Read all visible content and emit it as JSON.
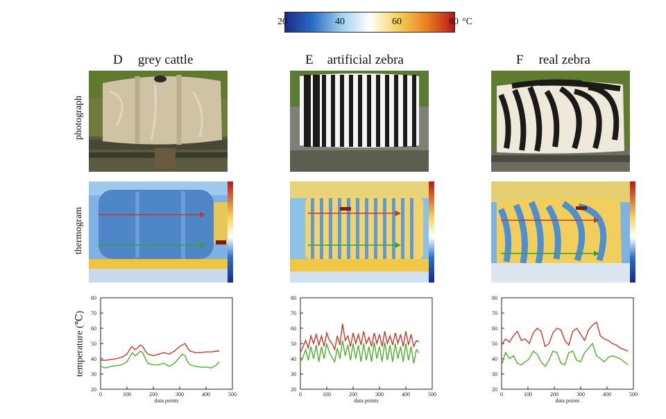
{
  "colorbar": {
    "ticks": [
      "20",
      "40",
      "60",
      "80"
    ],
    "unit": "°C",
    "colors": [
      "#1c2a8a",
      "#2b6fc5",
      "#9fd0ef",
      "#ffffff",
      "#f5d25a",
      "#e8831f",
      "#b81818"
    ]
  },
  "row_labels": {
    "photo": "photograph",
    "thermo": "thermogram",
    "plot_ylabel": "temperature (℃)"
  },
  "panels": [
    {
      "letter": "D",
      "title": "grey cattle"
    },
    {
      "letter": "E",
      "title": "artificial zebra"
    },
    {
      "letter": "F",
      "title": "real zebra"
    }
  ],
  "plot_xlabel": "data points",
  "chart_data": [
    {
      "type": "line",
      "panel": "D",
      "xlabel": "data points",
      "ylabel": "temperature (℃)",
      "xlim": [
        0,
        500
      ],
      "ylim": [
        20,
        80
      ],
      "xticks": [
        "0",
        "100",
        "200",
        "300",
        "400",
        "500"
      ],
      "yticks": [
        "20",
        "30",
        "40",
        "50",
        "60",
        "70",
        "80"
      ],
      "series": [
        {
          "color": "#c0392b",
          "x": [
            0,
            20,
            40,
            60,
            80,
            100,
            110,
            120,
            130,
            140,
            150,
            160,
            170,
            180,
            200,
            220,
            240,
            260,
            280,
            300,
            310,
            320,
            330,
            340,
            360,
            380,
            400,
            420,
            440,
            450
          ],
          "y": [
            39,
            39,
            39.5,
            40,
            41,
            43,
            46,
            48,
            46,
            47,
            49,
            48,
            45,
            43,
            42,
            43,
            44,
            43,
            45,
            48,
            49,
            50,
            47,
            45,
            44,
            44,
            44.5,
            44.5,
            45,
            45
          ]
        },
        {
          "color": "#4caf2a",
          "x": [
            0,
            20,
            40,
            60,
            80,
            100,
            110,
            120,
            130,
            140,
            150,
            160,
            170,
            180,
            200,
            220,
            240,
            260,
            280,
            300,
            310,
            320,
            330,
            340,
            360,
            380,
            400,
            420,
            440,
            450
          ],
          "y": [
            35,
            34,
            35,
            35.5,
            36,
            38,
            41,
            44,
            42,
            43,
            45,
            44,
            40,
            37,
            36,
            36,
            37,
            35,
            37,
            41,
            43,
            42,
            38,
            36,
            35,
            34.5,
            34.5,
            34,
            36,
            38
          ]
        }
      ]
    },
    {
      "type": "line",
      "panel": "E",
      "xlabel": "data points",
      "ylabel": "",
      "xlim": [
        0,
        500
      ],
      "ylim": [
        20,
        80
      ],
      "xticks": [
        "0",
        "100",
        "200",
        "300",
        "400",
        "500"
      ],
      "yticks": [
        "20",
        "30",
        "40",
        "50",
        "60",
        "70",
        "80"
      ],
      "series": [
        {
          "color": "#c0392b",
          "x": [
            0,
            10,
            20,
            30,
            40,
            50,
            60,
            70,
            80,
            90,
            100,
            110,
            120,
            130,
            140,
            150,
            160,
            170,
            180,
            190,
            200,
            210,
            220,
            230,
            240,
            250,
            260,
            270,
            280,
            290,
            300,
            310,
            320,
            330,
            340,
            350,
            360,
            370,
            380,
            390,
            400,
            410,
            420,
            430,
            440,
            450
          ],
          "y": [
            44,
            48,
            52,
            47,
            55,
            50,
            56,
            49,
            55,
            48,
            57,
            52,
            50,
            46,
            55,
            49,
            63,
            52,
            55,
            48,
            57,
            50,
            56,
            49,
            58,
            50,
            54,
            48,
            57,
            50,
            56,
            48,
            58,
            50,
            55,
            49,
            57,
            50,
            56,
            48,
            58,
            49,
            56,
            48,
            52,
            51
          ]
        },
        {
          "color": "#4caf2a",
          "x": [
            0,
            10,
            20,
            30,
            40,
            50,
            60,
            70,
            80,
            90,
            100,
            110,
            120,
            130,
            140,
            150,
            160,
            170,
            180,
            190,
            200,
            210,
            220,
            230,
            240,
            250,
            260,
            270,
            280,
            290,
            300,
            310,
            320,
            330,
            340,
            350,
            360,
            370,
            380,
            390,
            400,
            410,
            420,
            430,
            440,
            450
          ],
          "y": [
            38,
            41,
            46,
            39,
            48,
            40,
            49,
            38,
            48,
            40,
            50,
            44,
            41,
            38,
            47,
            40,
            52,
            42,
            49,
            39,
            50,
            40,
            49,
            38,
            50,
            39,
            48,
            38,
            51,
            40,
            48,
            38,
            51,
            39,
            49,
            38,
            50,
            40,
            48,
            38,
            50,
            39,
            48,
            37,
            46,
            44
          ]
        }
      ]
    },
    {
      "type": "line",
      "panel": "F",
      "xlabel": "data points",
      "ylabel": "",
      "xlim": [
        0,
        500
      ],
      "ylim": [
        20,
        80
      ],
      "xticks": [
        "0",
        "100",
        "200",
        "300",
        "400",
        "500"
      ],
      "yticks": [
        "20",
        "30",
        "40",
        "50",
        "60",
        "70",
        "80"
      ],
      "series": [
        {
          "color": "#c0392b",
          "x": [
            0,
            15,
            30,
            45,
            60,
            75,
            90,
            105,
            120,
            135,
            150,
            165,
            180,
            195,
            210,
            225,
            240,
            255,
            270,
            285,
            300,
            315,
            330,
            345,
            360,
            375,
            390,
            405,
            420,
            435,
            450,
            465,
            480
          ],
          "y": [
            49,
            53,
            51,
            55,
            58,
            52,
            53,
            50,
            57,
            60,
            58,
            48,
            50,
            57,
            60,
            59,
            52,
            49,
            58,
            60,
            56,
            52,
            59,
            62,
            64,
            55,
            53,
            52,
            50,
            49,
            47,
            46,
            45
          ]
        },
        {
          "color": "#4caf2a",
          "x": [
            0,
            15,
            30,
            45,
            60,
            75,
            90,
            105,
            120,
            135,
            150,
            165,
            180,
            195,
            210,
            225,
            240,
            255,
            270,
            285,
            300,
            315,
            330,
            345,
            360,
            375,
            390,
            405,
            420,
            435,
            450,
            465,
            480
          ],
          "y": [
            36,
            44,
            40,
            42,
            37,
            36,
            38,
            40,
            45,
            43,
            38,
            35,
            39,
            45,
            44,
            37,
            36,
            44,
            45,
            39,
            38,
            44,
            47,
            50,
            42,
            40,
            38,
            41,
            42,
            41,
            40,
            38,
            36
          ]
        }
      ]
    }
  ]
}
